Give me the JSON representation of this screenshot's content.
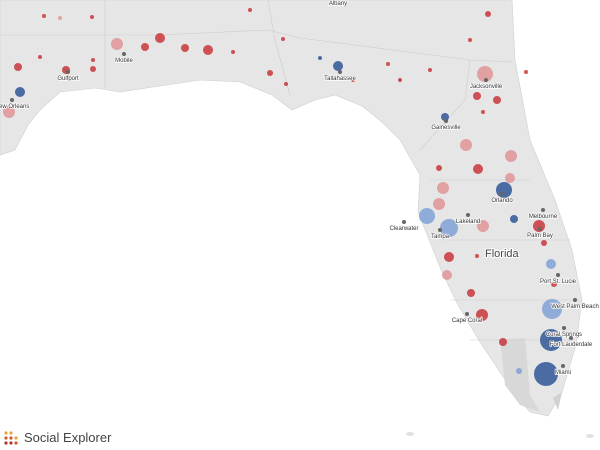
{
  "map": {
    "state_label": "Florida",
    "colors": {
      "land": "#e6e6e6",
      "water": "#ffffff",
      "border": "#c8c8c8",
      "dark_blue": "#2f5597",
      "light_blue": "#7fa0d4",
      "red": "#c8363a",
      "light_red": "#df9496",
      "city_dot": "#666666"
    },
    "cities": [
      "Albany",
      "Mobile",
      "Gulfport",
      "New Orleans",
      "Tallahassee",
      "Jacksonville",
      "Gainesville",
      "Orlando",
      "Melbourne",
      "Palm Bay",
      "Lakeland",
      "Clearwater",
      "Tampa",
      "Port St. Lucie",
      "Cape Coral",
      "West Palm Beach",
      "Coral Springs",
      "Fort Lauderdale",
      "Miami"
    ]
  },
  "brand": {
    "name": "Social Explorer",
    "logo_colors": [
      "#e8a33a",
      "#d4562b",
      "#b8332a"
    ]
  }
}
